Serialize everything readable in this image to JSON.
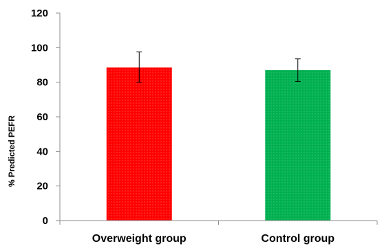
{
  "chart_data": {
    "type": "bar",
    "title": "",
    "xlabel": "",
    "ylabel": "% Predicted PEFR",
    "ylim": [
      0,
      120
    ],
    "yticks": [
      0,
      20,
      40,
      60,
      80,
      100,
      120
    ],
    "grid": false,
    "categories": [
      "Overweight group",
      "Control group"
    ],
    "values": [
      88.5,
      87.0
    ],
    "error_low": [
      80.0,
      80.5
    ],
    "error_high": [
      97.5,
      93.5
    ],
    "colors": [
      "#ff0000",
      "#00b050"
    ],
    "patterns": [
      "dotted",
      "dotted"
    ]
  }
}
